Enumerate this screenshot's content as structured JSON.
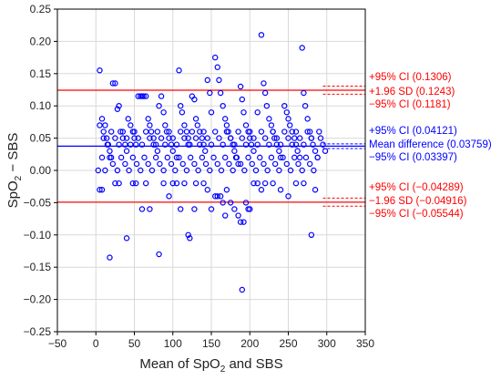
{
  "chart_data": {
    "type": "scatter",
    "title": "",
    "xlabel": "Mean of SpO",
    "xlabel_sub": "2",
    "xlabel_tail": " and SBS",
    "ylabel": "SpO",
    "ylabel_sub": "2",
    "ylabel_tail": " − SBS",
    "xlim": [
      -50,
      350
    ],
    "ylim": [
      -0.25,
      0.25
    ],
    "grid": true,
    "x_ticks": [
      -50,
      0,
      50,
      100,
      150,
      200,
      250,
      300,
      350
    ],
    "x_tick_labels": [
      "−50",
      "0",
      "50",
      "100",
      "150",
      "200",
      "250",
      "300",
      "350"
    ],
    "y_ticks": [
      -0.25,
      -0.2,
      -0.15,
      -0.1,
      -0.05,
      0,
      0.05,
      0.1,
      0.15,
      0.2,
      0.25
    ],
    "y_tick_labels": [
      "−0.25",
      "−0.20",
      "−0.15",
      "−0.10",
      "−0.05",
      "0.00",
      "0.05",
      "0.10",
      "0.15",
      "0.20",
      "0.25"
    ],
    "lines": {
      "upper_loa": {
        "label": "+1.96 SD (0.1243)",
        "value": 0.1243,
        "color": "#ff0000"
      },
      "upper_loa_ci_hi": {
        "label": "+95% CI (0.1306)",
        "value": 0.1306,
        "color": "#ff0000"
      },
      "upper_loa_ci_lo": {
        "label": "−95% CI (0.1181)",
        "value": 0.1181,
        "color": "#ff0000"
      },
      "mean_diff": {
        "label": "Mean difference (0.03759)",
        "value": 0.03759,
        "color": "#0000ff"
      },
      "mean_ci_hi": {
        "label": "+95% CI (0.04121)",
        "value": 0.04121,
        "color": "#0000ff"
      },
      "mean_ci_lo": {
        "label": "−95% CI (0.03397)",
        "value": 0.03397,
        "color": "#0000ff"
      },
      "lower_loa": {
        "label": "−1.96 SD (−0.04916)",
        "value": -0.04916,
        "color": "#ff0000"
      },
      "lower_loa_ci_hi": {
        "label": "+95% CI (−0.04289)",
        "value": -0.04289,
        "color": "#ff0000"
      },
      "lower_loa_ci_lo": {
        "label": "−95% CI (−0.05544)",
        "value": -0.05544,
        "color": "#ff0000"
      }
    },
    "marker_color": "#0000ff",
    "points": [
      [
        5,
        0.155
      ],
      [
        8,
        0.08
      ],
      [
        10,
        0.06
      ],
      [
        12,
        0.07
      ],
      [
        14,
        0.05
      ],
      [
        16,
        0.04
      ],
      [
        18,
        0.03
      ],
      [
        20,
        0.02
      ],
      [
        22,
        0.135
      ],
      [
        25,
        0.135
      ],
      [
        28,
        0.095
      ],
      [
        30,
        0.1
      ],
      [
        32,
        0.06
      ],
      [
        35,
        0.05
      ],
      [
        38,
        0.04
      ],
      [
        40,
        0.03
      ],
      [
        42,
        0.08
      ],
      [
        45,
        0.07
      ],
      [
        48,
        0.06
      ],
      [
        50,
        0.05
      ],
      [
        52,
        0.04
      ],
      [
        55,
        0.115
      ],
      [
        58,
        0.115
      ],
      [
        60,
        0.115
      ],
      [
        62,
        0.115
      ],
      [
        65,
        0.115
      ],
      [
        68,
        0.08
      ],
      [
        70,
        0.07
      ],
      [
        72,
        0.06
      ],
      [
        75,
        0.05
      ],
      [
        78,
        0.04
      ],
      [
        80,
        0.03
      ],
      [
        82,
        0.1
      ],
      [
        85,
        0.115
      ],
      [
        88,
        0.09
      ],
      [
        90,
        0.07
      ],
      [
        92,
        0.06
      ],
      [
        95,
        0.05
      ],
      [
        98,
        0.04
      ],
      [
        100,
        0.03
      ],
      [
        105,
        0.02
      ],
      [
        108,
        0.155
      ],
      [
        110,
        0.1
      ],
      [
        112,
        0.09
      ],
      [
        115,
        0.07
      ],
      [
        118,
        0.06
      ],
      [
        120,
        0.05
      ],
      [
        122,
        0.04
      ],
      [
        125,
        0.115
      ],
      [
        128,
        0.11
      ],
      [
        130,
        0.08
      ],
      [
        132,
        0.07
      ],
      [
        135,
        0.06
      ],
      [
        138,
        0.05
      ],
      [
        140,
        0.04
      ],
      [
        142,
        0.03
      ],
      [
        145,
        0.14
      ],
      [
        148,
        0.12
      ],
      [
        150,
        0.09
      ],
      [
        155,
        0.175
      ],
      [
        158,
        0.16
      ],
      [
        160,
        0.14
      ],
      [
        162,
        0.12
      ],
      [
        165,
        0.1
      ],
      [
        168,
        0.08
      ],
      [
        170,
        0.07
      ],
      [
        172,
        0.06
      ],
      [
        175,
        0.05
      ],
      [
        178,
        0.04
      ],
      [
        180,
        0.03
      ],
      [
        182,
        0.02
      ],
      [
        185,
        0.01
      ],
      [
        188,
        0.13
      ],
      [
        190,
        0.11
      ],
      [
        192,
        0.09
      ],
      [
        195,
        0.07
      ],
      [
        198,
        0.06
      ],
      [
        200,
        0.05
      ],
      [
        202,
        0.04
      ],
      [
        205,
        0.03
      ],
      [
        210,
        0.09
      ],
      [
        215,
        0.21
      ],
      [
        218,
        0.135
      ],
      [
        220,
        0.12
      ],
      [
        222,
        0.1
      ],
      [
        225,
        0.08
      ],
      [
        228,
        0.07
      ],
      [
        230,
        0.06
      ],
      [
        232,
        0.05
      ],
      [
        235,
        0.04
      ],
      [
        238,
        0.03
      ],
      [
        240,
        0.02
      ],
      [
        245,
        0.1
      ],
      [
        248,
        0.09
      ],
      [
        250,
        0.08
      ],
      [
        252,
        0.07
      ],
      [
        255,
        0.06
      ],
      [
        258,
        0.05
      ],
      [
        260,
        0.04
      ],
      [
        262,
        0.03
      ],
      [
        265,
        0.02
      ],
      [
        268,
        0.19
      ],
      [
        270,
        0.12
      ],
      [
        272,
        0.1
      ],
      [
        275,
        0.08
      ],
      [
        278,
        0.06
      ],
      [
        280,
        0.05
      ],
      [
        282,
        0.04
      ],
      [
        285,
        0.03
      ],
      [
        288,
        0.02
      ],
      [
        290,
        0.06
      ],
      [
        292,
        0.05
      ],
      [
        295,
        0.04
      ],
      [
        298,
        0.03
      ],
      [
        5,
        0.07
      ],
      [
        10,
        0.05
      ],
      [
        15,
        0.04
      ],
      [
        20,
        0.06
      ],
      [
        25,
        0.05
      ],
      [
        30,
        0.04
      ],
      [
        35,
        0.06
      ],
      [
        40,
        0.05
      ],
      [
        45,
        0.04
      ],
      [
        50,
        0.06
      ],
      [
        55,
        0.05
      ],
      [
        60,
        0.04
      ],
      [
        65,
        0.06
      ],
      [
        70,
        0.05
      ],
      [
        75,
        0.04
      ],
      [
        80,
        0.06
      ],
      [
        85,
        0.05
      ],
      [
        90,
        0.04
      ],
      [
        95,
        0.06
      ],
      [
        100,
        0.05
      ],
      [
        105,
        0.04
      ],
      [
        110,
        0.06
      ],
      [
        115,
        0.05
      ],
      [
        120,
        0.04
      ],
      [
        125,
        0.06
      ],
      [
        130,
        0.05
      ],
      [
        135,
        0.04
      ],
      [
        140,
        0.06
      ],
      [
        145,
        0.05
      ],
      [
        150,
        0.04
      ],
      [
        155,
        0.06
      ],
      [
        160,
        0.05
      ],
      [
        165,
        0.04
      ],
      [
        170,
        0.06
      ],
      [
        175,
        0.05
      ],
      [
        180,
        0.04
      ],
      [
        185,
        0.06
      ],
      [
        190,
        0.05
      ],
      [
        195,
        0.04
      ],
      [
        200,
        0.06
      ],
      [
        205,
        0.05
      ],
      [
        210,
        0.04
      ],
      [
        215,
        0.06
      ],
      [
        220,
        0.05
      ],
      [
        225,
        0.04
      ],
      [
        230,
        0.06
      ],
      [
        235,
        0.05
      ],
      [
        240,
        0.04
      ],
      [
        245,
        0.06
      ],
      [
        250,
        0.05
      ],
      [
        255,
        0.04
      ],
      [
        260,
        0.06
      ],
      [
        265,
        0.05
      ],
      [
        270,
        0.04
      ],
      [
        275,
        0.06
      ],
      [
        280,
        0.05
      ],
      [
        3,
        0.0
      ],
      [
        8,
        0.02
      ],
      [
        12,
        0.0
      ],
      [
        18,
        0.02
      ],
      [
        22,
        0.01
      ],
      [
        28,
        0.0
      ],
      [
        33,
        0.02
      ],
      [
        38,
        0.01
      ],
      [
        43,
        0.0
      ],
      [
        48,
        0.02
      ],
      [
        53,
        0.01
      ],
      [
        58,
        0.0
      ],
      [
        63,
        0.02
      ],
      [
        68,
        0.01
      ],
      [
        73,
        0.0
      ],
      [
        78,
        0.02
      ],
      [
        83,
        0.01
      ],
      [
        88,
        0.0
      ],
      [
        93,
        0.02
      ],
      [
        98,
        0.01
      ],
      [
        103,
        0.0
      ],
      [
        108,
        0.02
      ],
      [
        113,
        0.01
      ],
      [
        118,
        0.0
      ],
      [
        123,
        0.02
      ],
      [
        128,
        0.01
      ],
      [
        133,
        0.0
      ],
      [
        138,
        0.02
      ],
      [
        143,
        0.01
      ],
      [
        148,
        0.0
      ],
      [
        153,
        0.02
      ],
      [
        158,
        0.01
      ],
      [
        163,
        0.0
      ],
      [
        168,
        0.02
      ],
      [
        173,
        0.01
      ],
      [
        178,
        0.0
      ],
      [
        183,
        0.02
      ],
      [
        188,
        0.01
      ],
      [
        193,
        0.0
      ],
      [
        198,
        0.02
      ],
      [
        203,
        0.01
      ],
      [
        208,
        0.0
      ],
      [
        213,
        0.02
      ],
      [
        218,
        0.01
      ],
      [
        223,
        0.0
      ],
      [
        228,
        0.02
      ],
      [
        233,
        0.01
      ],
      [
        238,
        0.0
      ],
      [
        243,
        0.02
      ],
      [
        248,
        0.01
      ],
      [
        253,
        0.0
      ],
      [
        258,
        0.02
      ],
      [
        263,
        0.01
      ],
      [
        268,
        0.0
      ],
      [
        273,
        0.02
      ],
      [
        278,
        0.01
      ],
      [
        283,
        0.0
      ],
      [
        288,
        0.02
      ],
      [
        5,
        -0.03
      ],
      [
        8,
        -0.03
      ],
      [
        18,
        -0.135
      ],
      [
        25,
        -0.02
      ],
      [
        30,
        -0.02
      ],
      [
        40,
        -0.105
      ],
      [
        48,
        -0.02
      ],
      [
        52,
        -0.02
      ],
      [
        60,
        -0.06
      ],
      [
        65,
        -0.02
      ],
      [
        70,
        -0.06
      ],
      [
        82,
        -0.13
      ],
      [
        88,
        -0.02
      ],
      [
        95,
        -0.04
      ],
      [
        100,
        -0.02
      ],
      [
        105,
        -0.02
      ],
      [
        110,
        -0.06
      ],
      [
        115,
        -0.02
      ],
      [
        120,
        -0.1
      ],
      [
        122,
        -0.105
      ],
      [
        128,
        -0.06
      ],
      [
        130,
        -0.02
      ],
      [
        140,
        -0.02
      ],
      [
        145,
        -0.03
      ],
      [
        150,
        -0.06
      ],
      [
        155,
        -0.04
      ],
      [
        158,
        -0.04
      ],
      [
        162,
        -0.04
      ],
      [
        165,
        -0.05
      ],
      [
        168,
        -0.07
      ],
      [
        170,
        -0.03
      ],
      [
        175,
        -0.05
      ],
      [
        180,
        -0.06
      ],
      [
        185,
        -0.07
      ],
      [
        188,
        -0.08
      ],
      [
        190,
        -0.185
      ],
      [
        192,
        -0.08
      ],
      [
        195,
        -0.05
      ],
      [
        198,
        -0.06
      ],
      [
        200,
        -0.06
      ],
      [
        205,
        -0.02
      ],
      [
        210,
        -0.02
      ],
      [
        215,
        -0.03
      ],
      [
        220,
        -0.02
      ],
      [
        230,
        -0.02
      ],
      [
        240,
        -0.03
      ],
      [
        250,
        -0.04
      ],
      [
        260,
        -0.02
      ],
      [
        270,
        -0.02
      ],
      [
        280,
        -0.1
      ],
      [
        285,
        -0.03
      ]
    ]
  }
}
